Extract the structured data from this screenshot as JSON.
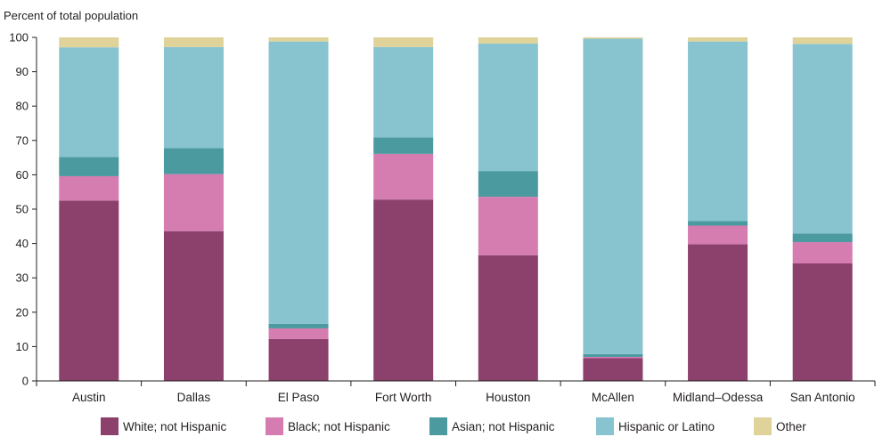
{
  "chart_data": {
    "type": "bar",
    "stacked": true,
    "ylabel": "Percent of total population",
    "xlabel": "",
    "ylim": [
      0,
      100
    ],
    "yticks": [
      0,
      10,
      20,
      30,
      40,
      50,
      60,
      70,
      80,
      90,
      100
    ],
    "grid": false,
    "legend_position": "bottom",
    "categories": [
      "Austin",
      "Dallas",
      "El Paso",
      "Fort Worth",
      "Houston",
      "McAllen",
      "Midland–Odessa",
      "San Antonio"
    ],
    "series": [
      {
        "name": "White; not Hispanic",
        "color": "#8b416c",
        "values": [
          52.5,
          43.6,
          12.2,
          52.8,
          36.6,
          6.6,
          39.8,
          34.2
        ]
      },
      {
        "name": "Black; not Hispanic",
        "color": "#d57cb1",
        "values": [
          7.1,
          16.6,
          3.1,
          13.3,
          17.0,
          0.4,
          5.4,
          6.2
        ]
      },
      {
        "name": "Asian; not Hispanic",
        "color": "#4b9aa0",
        "values": [
          5.6,
          7.6,
          1.3,
          4.8,
          7.5,
          0.8,
          1.3,
          2.5
        ]
      },
      {
        "name": "Hispanic or Latino",
        "color": "#88c3d0",
        "values": [
          31.9,
          29.4,
          82.2,
          26.3,
          37.1,
          91.8,
          52.3,
          55.2
        ]
      },
      {
        "name": "Other",
        "color": "#dfd39a",
        "values": [
          2.9,
          2.8,
          1.2,
          2.8,
          1.8,
          0.4,
          1.2,
          1.9
        ]
      }
    ]
  }
}
